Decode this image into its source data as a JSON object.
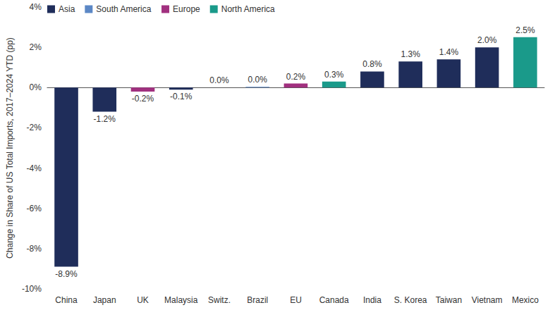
{
  "chart_data": {
    "type": "bar",
    "y_label": "Change in Share of US Total Imports, 2017–2024 YTD (pp)",
    "categories": [
      "China",
      "Japan",
      "UK",
      "Malaysia",
      "Switz.",
      "Brazil",
      "EU",
      "Canada",
      "India",
      "S. Korea",
      "Taiwan",
      "Vietnam",
      "Mexico"
    ],
    "series": [
      {
        "name": "Asia",
        "color": "#1f2d5a",
        "values": [
          -8.9,
          -1.2,
          null,
          -0.1,
          null,
          null,
          null,
          null,
          0.8,
          1.3,
          1.4,
          2.0,
          null
        ],
        "value_labels": [
          "-8.9%",
          "-1.2%",
          null,
          "-0.1%",
          null,
          null,
          null,
          null,
          "0.8%",
          "1.3%",
          "1.4%",
          "2.0%",
          null
        ]
      },
      {
        "name": "South America",
        "color": "#5b87c5",
        "values": [
          null,
          null,
          null,
          null,
          null,
          0.04,
          null,
          null,
          null,
          null,
          null,
          null,
          null
        ],
        "value_labels": [
          null,
          null,
          null,
          null,
          null,
          "0.0%",
          null,
          null,
          null,
          null,
          null,
          null,
          null
        ]
      },
      {
        "name": "Europe",
        "color": "#a1307f",
        "values": [
          null,
          null,
          -0.2,
          null,
          0.0,
          null,
          0.2,
          null,
          null,
          null,
          null,
          null,
          null
        ],
        "value_labels": [
          null,
          null,
          "-0.2%",
          null,
          "0.0%",
          null,
          "0.2%",
          null,
          null,
          null,
          null,
          null,
          null
        ]
      },
      {
        "name": "North America",
        "color": "#1a9a8a",
        "values": [
          null,
          null,
          null,
          null,
          null,
          null,
          null,
          0.3,
          null,
          null,
          null,
          null,
          2.5
        ],
        "value_labels": [
          null,
          null,
          null,
          null,
          null,
          null,
          null,
          "0.3%",
          null,
          null,
          null,
          null,
          "2.5%"
        ]
      }
    ],
    "stacked": true,
    "data_labels": true,
    "legend": "upper left",
    "grid": false,
    "ylim": [
      -10,
      4
    ],
    "yticks": [
      {
        "value": -10,
        "label": "-10%"
      },
      {
        "value": -8,
        "label": "-8%"
      },
      {
        "value": -6,
        "label": "-6%"
      },
      {
        "value": -4,
        "label": "-4%"
      },
      {
        "value": -2,
        "label": "-2%"
      },
      {
        "value": 0,
        "label": "0%"
      },
      {
        "value": 2,
        "label": "2%"
      },
      {
        "value": 4,
        "label": "4%"
      }
    ]
  }
}
